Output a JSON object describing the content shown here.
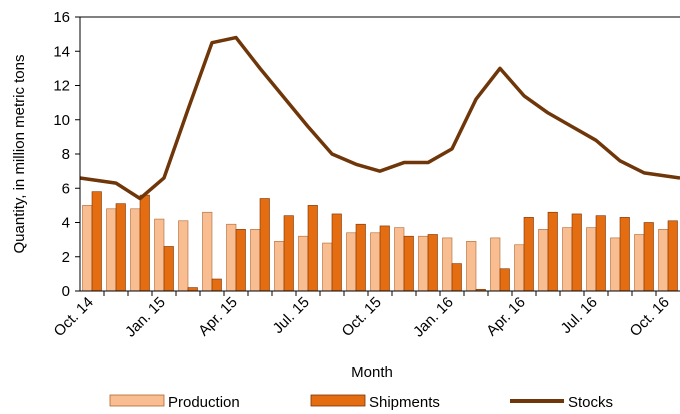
{
  "colors": {
    "production_fill": "#F8BD90",
    "production_stroke": "#B0672E",
    "shipments_fill": "#E36D10",
    "shipments_stroke": "#7A3306",
    "stocks_line": "#6E3609",
    "axis": "#000000"
  },
  "chart_data": {
    "type": "bar",
    "title": "",
    "xlabel": "Month",
    "ylabel": "Quantity, in million metric tons",
    "ylim": [
      0,
      16
    ],
    "yticks": [
      0,
      2,
      4,
      6,
      8,
      10,
      12,
      14,
      16
    ],
    "categories": [
      "Oct. 14",
      "Nov. 14",
      "Dec. 14",
      "Jan. 15",
      "Feb. 15",
      "Mar. 15",
      "Apr. 15",
      "May 15",
      "Jun. 15",
      "Jul. 15",
      "Aug. 15",
      "Sep. 15",
      "Oct. 15",
      "Nov. 15",
      "Dec. 15",
      "Jan. 16",
      "Feb. 16",
      "Mar. 16",
      "Apr. 16",
      "May 16",
      "Jun. 16",
      "Jul. 16",
      "Aug. 16",
      "Sep. 16",
      "Oct. 16"
    ],
    "x_tick_labels": [
      {
        "index": 0,
        "label": "Oct. 14"
      },
      {
        "index": 3,
        "label": "Jan. 15"
      },
      {
        "index": 6,
        "label": "Apr. 15"
      },
      {
        "index": 9,
        "label": "Jul. 15"
      },
      {
        "index": 12,
        "label": "Oct. 15"
      },
      {
        "index": 15,
        "label": "Jan. 16"
      },
      {
        "index": 18,
        "label": "Apr. 16"
      },
      {
        "index": 21,
        "label": "Jul. 16"
      },
      {
        "index": 24,
        "label": "Oct. 16"
      }
    ],
    "grid": false,
    "legend_position": "bottom",
    "series": [
      {
        "name": "Production",
        "kind": "bar",
        "values": [
          5.0,
          4.8,
          4.8,
          4.2,
          4.1,
          4.6,
          3.9,
          3.6,
          2.9,
          3.2,
          2.8,
          3.4,
          3.4,
          3.7,
          3.2,
          3.1,
          2.9,
          3.1,
          2.7,
          3.6,
          3.7,
          3.7,
          3.1,
          3.3,
          3.6
        ]
      },
      {
        "name": "Shipments",
        "kind": "bar",
        "values": [
          5.8,
          5.1,
          5.6,
          2.6,
          0.2,
          0.7,
          3.6,
          5.4,
          4.4,
          5.0,
          4.5,
          3.9,
          3.8,
          3.2,
          3.3,
          1.6,
          0.1,
          1.3,
          4.3,
          4.6,
          4.5,
          4.4,
          4.3,
          4.0,
          4.1
        ]
      },
      {
        "name": "Stocks",
        "kind": "line",
        "values": [
          6.6,
          6.3,
          5.4,
          6.6,
          10.6,
          14.5,
          14.8,
          13.0,
          11.3,
          9.6,
          8.0,
          7.4,
          7.0,
          7.5,
          7.5,
          8.3,
          11.2,
          13.0,
          11.4,
          10.4,
          9.6,
          8.8,
          7.6,
          6.9,
          6.6
        ]
      }
    ]
  }
}
